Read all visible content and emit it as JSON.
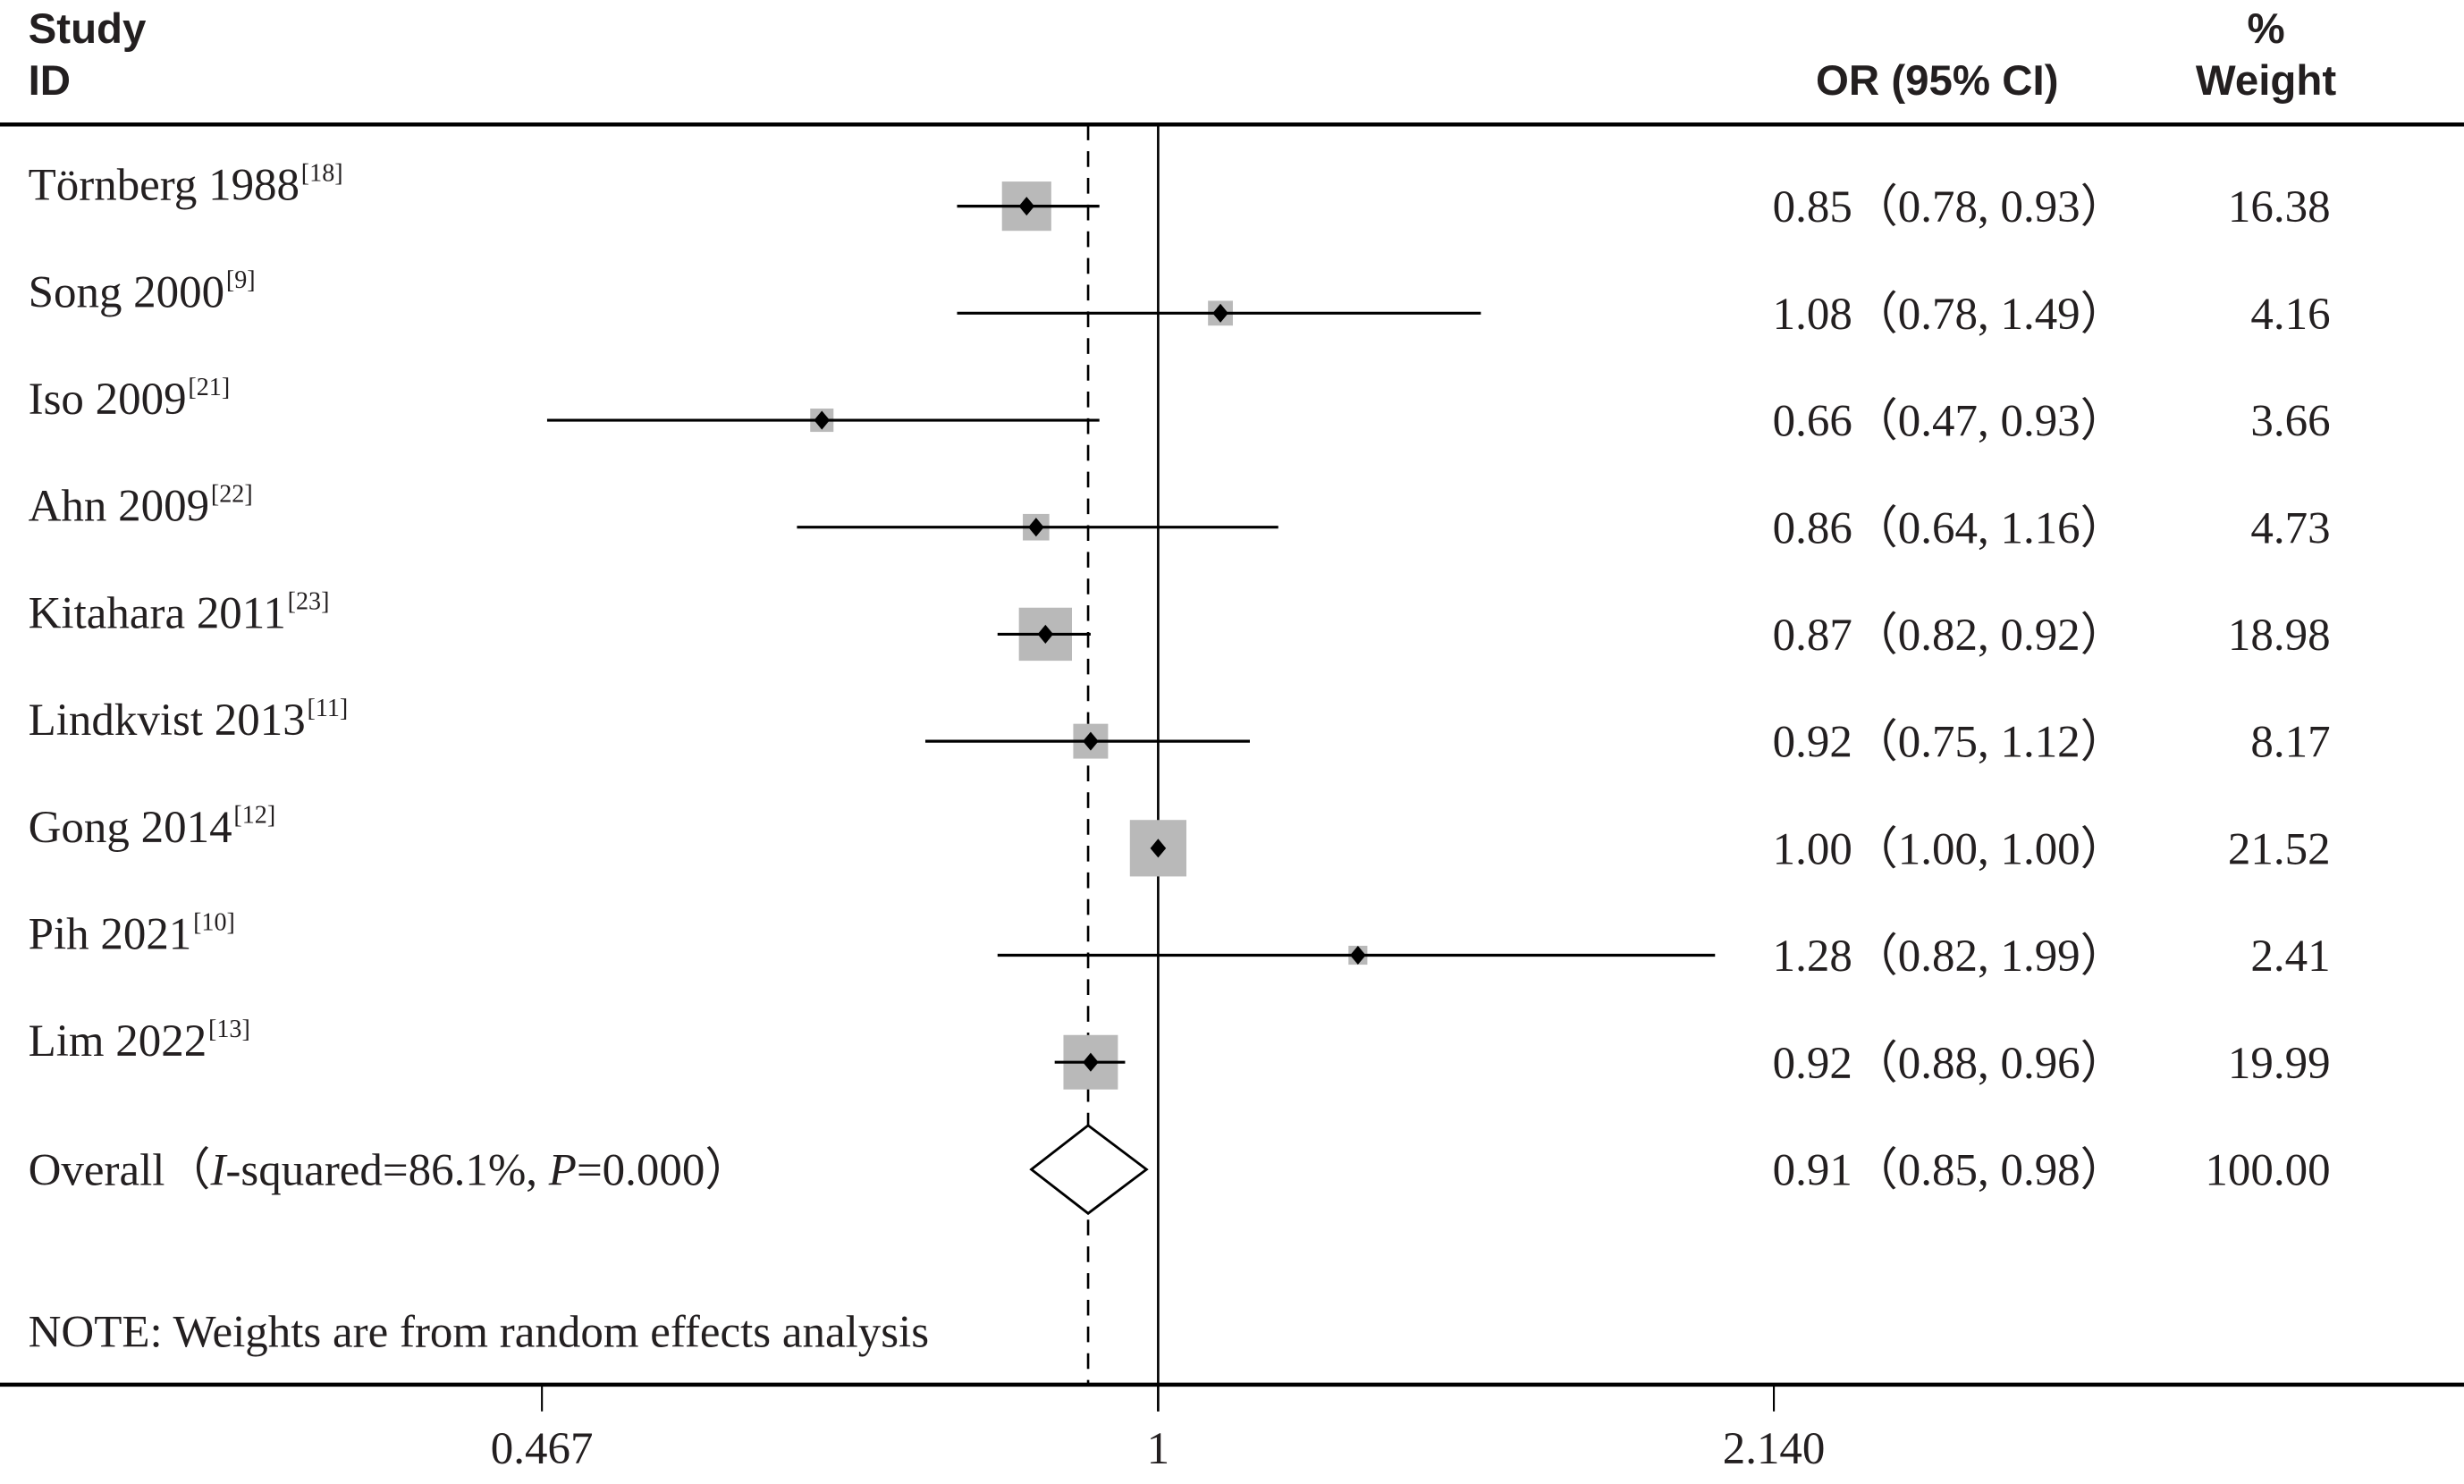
{
  "chart_data": {
    "type": "forest",
    "header": {
      "study": "Study",
      "id": "ID",
      "or_ci": "OR (95% CI)",
      "pct": "%",
      "weight": "Weight"
    },
    "studies": [
      {
        "name": "Törnberg 1988",
        "ref": "[18]",
        "or": 0.85,
        "lo": 0.78,
        "hi": 0.93,
        "or_text": "0.85（0.78, 0.93）",
        "weight": 16.38,
        "weight_text": "16.38"
      },
      {
        "name": "Song 2000",
        "ref": "[9]",
        "or": 1.08,
        "lo": 0.78,
        "hi": 1.49,
        "or_text": "1.08（0.78, 1.49）",
        "weight": 4.16,
        "weight_text": "4.16"
      },
      {
        "name": "Iso 2009",
        "ref": "[21]",
        "or": 0.66,
        "lo": 0.47,
        "hi": 0.93,
        "or_text": "0.66（0.47, 0.93）",
        "weight": 3.66,
        "weight_text": "3.66"
      },
      {
        "name": "Ahn 2009",
        "ref": "[22]",
        "or": 0.86,
        "lo": 0.64,
        "hi": 1.16,
        "or_text": "0.86（0.64, 1.16）",
        "weight": 4.73,
        "weight_text": "4.73"
      },
      {
        "name": "Kitahara 2011",
        "ref": "[23]",
        "or": 0.87,
        "lo": 0.82,
        "hi": 0.92,
        "or_text": "0.87（0.82, 0.92）",
        "weight": 18.98,
        "weight_text": "18.98"
      },
      {
        "name": "Lindkvist 2013",
        "ref": "[11]",
        "or": 0.92,
        "lo": 0.75,
        "hi": 1.12,
        "or_text": "0.92（0.75, 1.12）",
        "weight": 8.17,
        "weight_text": "8.17"
      },
      {
        "name": "Gong 2014",
        "ref": "[12]",
        "or": 1.0,
        "lo": 1.0,
        "hi": 1.0,
        "or_text": "1.00（1.00, 1.00）",
        "weight": 21.52,
        "weight_text": "21.52"
      },
      {
        "name": "Pih 2021",
        "ref": "[10]",
        "or": 1.28,
        "lo": 0.82,
        "hi": 1.99,
        "or_text": "1.28（0.82, 1.99）",
        "weight": 2.41,
        "weight_text": "2.41"
      },
      {
        "name": "Lim 2022",
        "ref": "[13]",
        "or": 0.92,
        "lo": 0.88,
        "hi": 0.96,
        "or_text": "0.92（0.88, 0.96）",
        "weight": 19.99,
        "weight_text": "19.99"
      }
    ],
    "overall": {
      "label_parts": [
        "Overall（",
        "I",
        "-squared=86.1%, ",
        "P",
        "=0.000）"
      ],
      "or": 0.91,
      "lo": 0.85,
      "hi": 0.98,
      "or_text": "0.91（0.85, 0.98）",
      "weight_text": "100.00"
    },
    "note": "NOTE: Weights are from random effects analysis",
    "x_axis": {
      "scale": "log",
      "ticks": [
        0.467,
        1,
        2.14
      ],
      "tick_labels": [
        "0.467",
        "1",
        "2.140"
      ],
      "null_line": 1
    },
    "colors": {
      "box": "#b9b9b9",
      "line": "#000000",
      "text": "#231f20"
    }
  }
}
